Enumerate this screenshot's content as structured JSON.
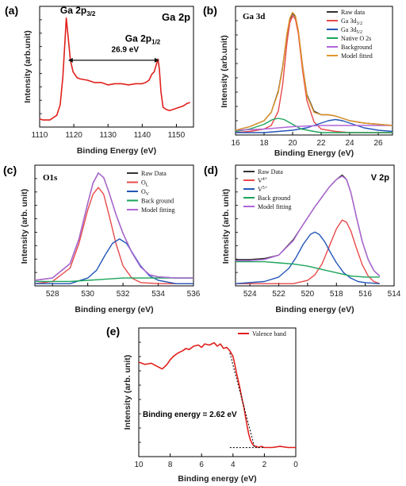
{
  "chart_data": [
    {
      "type": "line",
      "panel_label": "(a)",
      "title": "Ga 2p",
      "xlabel": "Binding Energy (eV)",
      "ylabel": "Intensity (arb.unit)",
      "xlim": [
        1110,
        1155
      ],
      "xticks": [
        1110,
        1120,
        1130,
        1140,
        1150
      ],
      "x_reversed": false,
      "colors": {
        "Ga 2p": "#e0201c",
        "arrow": "#111111"
      },
      "series": [
        {
          "name": "",
          "color": "#e0201c",
          "x": [
            1110,
            1111,
            1112,
            1113,
            1114,
            1115,
            1116,
            1116.8,
            1117.4,
            1117.8,
            1118.4,
            1119,
            1119.8,
            1121,
            1122,
            1124,
            1126,
            1128,
            1130,
            1132,
            1134,
            1136,
            1138,
            1140,
            1141,
            1142,
            1142.8,
            1143.5,
            1144.1,
            1144.6,
            1145,
            1145.5,
            1146.1,
            1147,
            1148,
            1149,
            1150,
            1151,
            1152,
            1153,
            1154
          ],
          "y": [
            0.12,
            0.11,
            0.11,
            0.11,
            0.13,
            0.15,
            0.24,
            0.48,
            0.78,
            0.98,
            0.8,
            0.62,
            0.52,
            0.47,
            0.46,
            0.45,
            0.43,
            0.43,
            0.41,
            0.42,
            0.42,
            0.41,
            0.42,
            0.42,
            0.43,
            0.45,
            0.5,
            0.52,
            0.58,
            0.63,
            0.55,
            0.35,
            0.22,
            0.2,
            0.19,
            0.2,
            0.21,
            0.22,
            0.23,
            0.25,
            0.26
          ]
        }
      ],
      "annotations": [
        {
          "text": "Ga 2p",
          "sub": "3/2",
          "x": 1116,
          "y": 1.02
        },
        {
          "text": "Ga 2p",
          "sub": "1/2",
          "x": 1135,
          "y": 0.78
        },
        {
          "text": "26.9 eV",
          "x": 1131,
          "y": 0.69
        }
      ],
      "arrow": {
        "x1": 1118.3,
        "x2": 1145.0,
        "y": 0.62
      }
    },
    {
      "type": "line",
      "panel_label": "(b)",
      "title": "Ga 3d",
      "xlabel": "Binding Energy (eV)",
      "ylabel": "Intensity (arb.unit)",
      "xlim": [
        16,
        27
      ],
      "xticks": [
        16,
        18,
        20,
        22,
        24,
        26
      ],
      "x_reversed": false,
      "legend": "top-right",
      "series": [
        {
          "name": "Raw data",
          "color": "#333333",
          "x": [
            16,
            17,
            18,
            18.5,
            19,
            19.3,
            19.6,
            19.8,
            20,
            20.2,
            20.4,
            20.7,
            21,
            21.5,
            22,
            22.5,
            23,
            24,
            25,
            26,
            27
          ],
          "y": [
            0.02,
            0.05,
            0.1,
            0.17,
            0.35,
            0.55,
            0.82,
            0.95,
            1.0,
            0.97,
            0.85,
            0.56,
            0.32,
            0.18,
            0.15,
            0.15,
            0.14,
            0.1,
            0.08,
            0.07,
            0.06
          ]
        },
        {
          "name": "Ga 3d 3/2",
          "color": "#e84a4a",
          "x": [
            16,
            17,
            18,
            18.5,
            19,
            19.3,
            19.6,
            19.8,
            20,
            20.2,
            20.4,
            20.7,
            21,
            21.5,
            22,
            23,
            24,
            25,
            26,
            27
          ],
          "y": [
            0.0,
            0.01,
            0.03,
            0.06,
            0.18,
            0.4,
            0.75,
            0.92,
            0.98,
            0.95,
            0.83,
            0.52,
            0.27,
            0.09,
            0.03,
            0.01,
            0.0,
            0.0,
            0.0,
            0.0
          ]
        },
        {
          "name": "Ga 3d 5/2",
          "color": "#2456b8",
          "x": [
            16,
            18,
            20,
            21,
            22,
            22.5,
            23,
            23.5,
            24,
            25,
            26,
            27
          ],
          "y": [
            0.0,
            0.0,
            0.02,
            0.04,
            0.08,
            0.1,
            0.11,
            0.1,
            0.08,
            0.04,
            0.02,
            0.01
          ]
        },
        {
          "name": "Native O 2s",
          "color": "#1aa55a",
          "x": [
            16,
            17,
            18,
            18.6,
            19,
            19.4,
            20,
            20.6,
            21.5,
            22,
            23,
            24,
            25,
            26,
            27
          ],
          "y": [
            0.01,
            0.03,
            0.07,
            0.11,
            0.12,
            0.11,
            0.07,
            0.03,
            0.01,
            0.0,
            0.0,
            0.0,
            0.0,
            0.0,
            0.0
          ]
        },
        {
          "name": "Background",
          "color": "#b066d8",
          "x": [
            16,
            18,
            20,
            22,
            24,
            26,
            27
          ],
          "y": [
            0.02,
            0.03,
            0.05,
            0.06,
            0.06,
            0.06,
            0.06
          ]
        },
        {
          "name": "Model fitted",
          "color": "#e0962c",
          "x": [
            16,
            17,
            18,
            18.5,
            19,
            19.3,
            19.6,
            19.8,
            20,
            20.2,
            20.4,
            20.7,
            21,
            21.5,
            22,
            22.5,
            23,
            24,
            25,
            26,
            27
          ],
          "y": [
            0.02,
            0.05,
            0.1,
            0.17,
            0.34,
            0.54,
            0.83,
            0.96,
            1.01,
            0.98,
            0.86,
            0.56,
            0.31,
            0.17,
            0.15,
            0.15,
            0.14,
            0.1,
            0.08,
            0.07,
            0.06
          ]
        }
      ]
    },
    {
      "type": "line",
      "panel_label": "(c)",
      "title": "O1s",
      "xlabel": "Binding energy (eV)",
      "ylabel": "Intensity (arb. unit)",
      "xlim": [
        536,
        527
      ],
      "xticks": [
        528,
        530,
        532,
        534,
        536
      ],
      "x_reversed": false,
      "legend": "top-right",
      "series": [
        {
          "name": "Raw Data",
          "color": "#333333",
          "x": [
            527,
            528,
            529,
            529.5,
            530,
            530.3,
            530.6,
            530.9,
            531.2,
            531.6,
            532,
            532.5,
            533,
            533.5,
            534,
            535,
            536
          ],
          "y": [
            0.03,
            0.05,
            0.18,
            0.4,
            0.72,
            0.9,
            0.99,
            0.95,
            0.82,
            0.62,
            0.45,
            0.28,
            0.15,
            0.08,
            0.06,
            0.05,
            0.05
          ]
        },
        {
          "name": "O L",
          "color": "#e84a4a",
          "x": [
            527,
            528,
            529,
            529.5,
            530,
            530.3,
            530.6,
            530.9,
            531.2,
            531.6,
            532,
            532.5,
            533,
            534,
            536
          ],
          "y": [
            0.0,
            0.02,
            0.14,
            0.36,
            0.66,
            0.8,
            0.86,
            0.8,
            0.62,
            0.36,
            0.16,
            0.05,
            0.01,
            0.0,
            0.0
          ]
        },
        {
          "name": "O V",
          "color": "#2456b8",
          "x": [
            527,
            529,
            530,
            530.5,
            531,
            531.4,
            531.8,
            532.2,
            532.6,
            533,
            533.5,
            534,
            535,
            536
          ],
          "y": [
            0.0,
            0.0,
            0.05,
            0.12,
            0.26,
            0.36,
            0.4,
            0.36,
            0.26,
            0.16,
            0.07,
            0.03,
            0.0,
            0.0
          ]
        },
        {
          "name": "Back ground",
          "color": "#1aa55a",
          "x": [
            527,
            528,
            529,
            530,
            531,
            532,
            533,
            534,
            535,
            536
          ],
          "y": [
            0.02,
            0.02,
            0.02,
            0.03,
            0.04,
            0.05,
            0.05,
            0.05,
            0.05,
            0.05
          ]
        },
        {
          "name": "Model fitting",
          "color": "#b066d8",
          "x": [
            527,
            528,
            529,
            529.5,
            530,
            530.3,
            530.6,
            530.9,
            531.2,
            531.6,
            532,
            532.5,
            533,
            533.5,
            534,
            535,
            536
          ],
          "y": [
            0.03,
            0.05,
            0.18,
            0.4,
            0.72,
            0.9,
            0.99,
            0.95,
            0.82,
            0.62,
            0.45,
            0.28,
            0.15,
            0.08,
            0.06,
            0.05,
            0.05
          ]
        }
      ]
    },
    {
      "type": "line",
      "panel_label": "(d)",
      "title": "V 2p",
      "xlabel": "Binding energy (eV)",
      "ylabel": "Intensity (arb. unit)",
      "xlim": [
        525,
        514
      ],
      "xticks": [
        524,
        522,
        520,
        518,
        516,
        514
      ],
      "x_reversed": true,
      "legend": "top-left",
      "series": [
        {
          "name": "Raw Data",
          "color": "#333333",
          "x": [
            525,
            524,
            523,
            522,
            521,
            520.5,
            520,
            519.5,
            519,
            518.5,
            518,
            517.6,
            517.3,
            517,
            516.6,
            516.2,
            515.8,
            515.4,
            515
          ],
          "y": [
            0.22,
            0.22,
            0.23,
            0.26,
            0.4,
            0.5,
            0.6,
            0.7,
            0.79,
            0.88,
            0.95,
            0.99,
            0.95,
            0.83,
            0.6,
            0.38,
            0.22,
            0.12,
            0.07
          ]
        },
        {
          "name": "V 4+",
          "color": "#e84a4a",
          "x": [
            525,
            521,
            520,
            519.5,
            519,
            518.5,
            518,
            517.6,
            517.3,
            517,
            516.6,
            516.2,
            515.8,
            515.4,
            515
          ],
          "y": [
            0.0,
            0.0,
            0.03,
            0.08,
            0.18,
            0.34,
            0.5,
            0.58,
            0.56,
            0.48,
            0.32,
            0.17,
            0.07,
            0.02,
            0.0
          ]
        },
        {
          "name": "V 5+",
          "color": "#2456b8",
          "x": [
            525,
            523,
            522,
            521.3,
            520.8,
            520.3,
            519.8,
            519.5,
            519.2,
            518.8,
            518.4,
            518,
            517.5,
            517,
            516.5,
            516,
            515
          ],
          "y": [
            0.0,
            0.02,
            0.06,
            0.14,
            0.24,
            0.36,
            0.45,
            0.47,
            0.45,
            0.38,
            0.28,
            0.19,
            0.1,
            0.05,
            0.02,
            0.01,
            0.0
          ]
        },
        {
          "name": "Back ground",
          "color": "#1aa55a",
          "x": [
            525,
            524,
            523,
            522,
            521,
            520,
            519,
            518,
            517,
            516,
            515
          ],
          "y": [
            0.2,
            0.2,
            0.2,
            0.19,
            0.18,
            0.16,
            0.13,
            0.1,
            0.07,
            0.06,
            0.06
          ]
        },
        {
          "name": "Model fitting",
          "color": "#b066d8",
          "x": [
            525,
            524,
            523,
            522,
            521,
            520.5,
            520,
            519.5,
            519,
            518.5,
            518,
            517.6,
            517.3,
            517,
            516.6,
            516.2,
            515.8,
            515.4,
            515
          ],
          "y": [
            0.21,
            0.21,
            0.22,
            0.26,
            0.39,
            0.5,
            0.6,
            0.7,
            0.79,
            0.88,
            0.95,
            0.98,
            0.95,
            0.83,
            0.6,
            0.38,
            0.22,
            0.12,
            0.07
          ]
        }
      ]
    },
    {
      "type": "line",
      "panel_label": "(e)",
      "title": "",
      "xlabel": "Binding energy (eV)",
      "ylabel": "Intensity (arb. unit)",
      "xlim": [
        10,
        0
      ],
      "xticks": [
        10,
        8,
        6,
        4,
        2,
        0
      ],
      "x_reversed": true,
      "legend": "top-right",
      "annotation": "Binding energy = 2.62 eV",
      "series": [
        {
          "name": "Valence band",
          "color": "#e0201c",
          "x": [
            10,
            9.6,
            9.2,
            8.8,
            8.5,
            8.2,
            8,
            7.8,
            7.5,
            7.2,
            7,
            6.8,
            6.5,
            6.2,
            6,
            5.8,
            5.5,
            5.2,
            5,
            4.8,
            4.6,
            4.4,
            4.2,
            4,
            3.9,
            3.8,
            3.7,
            3.6,
            3.5,
            3.4,
            3.3,
            3.2,
            3.1,
            3.0,
            2.9,
            2.8,
            2.7,
            2.6,
            2.5,
            2.4,
            2.2,
            2,
            1.5,
            1,
            0.5,
            0
          ],
          "y": [
            0.78,
            0.76,
            0.77,
            0.74,
            0.72,
            0.76,
            0.8,
            0.83,
            0.86,
            0.88,
            0.9,
            0.89,
            0.92,
            0.93,
            0.91,
            0.94,
            0.93,
            0.95,
            0.92,
            0.94,
            0.9,
            0.91,
            0.88,
            0.83,
            0.77,
            0.7,
            0.64,
            0.58,
            0.51,
            0.44,
            0.38,
            0.3,
            0.22,
            0.15,
            0.1,
            0.07,
            0.05,
            0.04,
            0.04,
            0.03,
            0.04,
            0.03,
            0.03,
            0.04,
            0.03,
            0.03
          ]
        }
      ],
      "tangent": {
        "x": [
          4.2,
          2.62
        ],
        "y": [
          0.86,
          0.03
        ]
      },
      "baseline": {
        "x": [
          4.2,
          2.0
        ],
        "y": [
          0.03,
          0.03
        ]
      }
    }
  ]
}
